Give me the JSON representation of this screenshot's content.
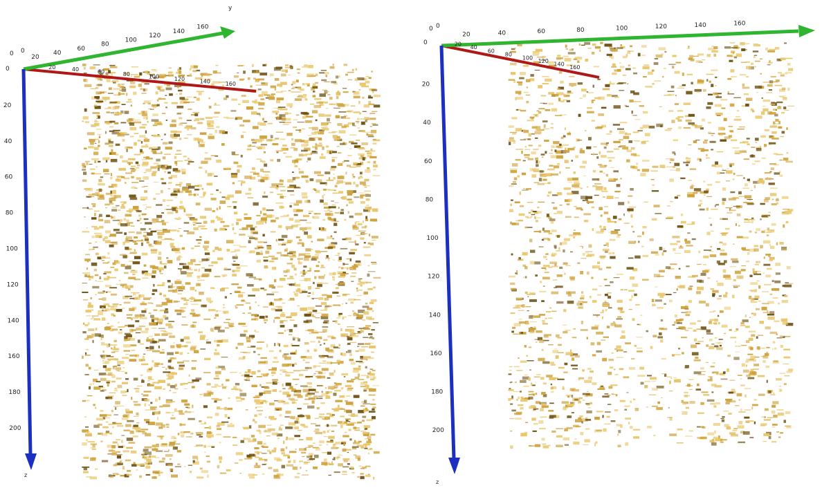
{
  "colors": {
    "background": "#ffffff",
    "x_axis": "#b01818",
    "y_axis": "#2fb52f",
    "z_axis": "#1c2fbf",
    "pore_light": "#e9c66a",
    "pore_mid": "#cfa23c",
    "pore_dark": "#6f5316"
  },
  "panels": [
    {
      "id": "left",
      "y_axis_label": "y",
      "z_axis_label": "z",
      "origin_labels": [
        "0",
        "0",
        "0"
      ],
      "x_ticks": [
        "20",
        "40",
        "60",
        "80",
        "100",
        "120",
        "140",
        "160"
      ],
      "y_ticks": [
        "20",
        "40",
        "60",
        "80",
        "100",
        "120",
        "140",
        "160"
      ],
      "z_ticks": [
        "20",
        "40",
        "60",
        "80",
        "100",
        "120",
        "140",
        "160",
        "180",
        "200"
      ]
    },
    {
      "id": "right",
      "y_axis_label": "",
      "z_axis_label": "z",
      "origin_labels": [
        "0",
        "0",
        "0"
      ],
      "x_ticks": [
        "20",
        "40",
        "60",
        "80",
        "100",
        "120",
        "140",
        "160"
      ],
      "y_ticks": [
        "20",
        "40",
        "60",
        "80",
        "100",
        "120",
        "140",
        "160"
      ],
      "z_ticks": [
        "20",
        "40",
        "60",
        "80",
        "100",
        "120",
        "140",
        "160",
        "180",
        "200"
      ]
    }
  ]
}
